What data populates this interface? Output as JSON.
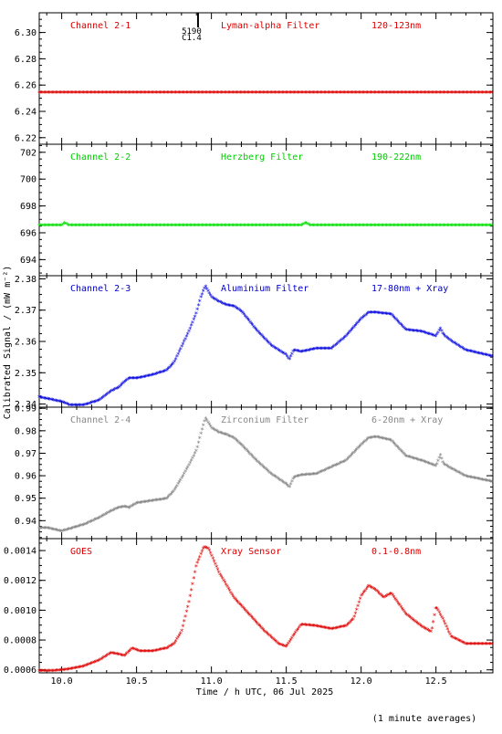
{
  "page": {
    "ylabel": "Calibrated Signal / (mW m⁻²)",
    "xlabel": "Time / h UTC, 06 Jul 2025",
    "footnote": "(1 minute averages)"
  },
  "chart_data": [
    {
      "type": "scatter",
      "channel": "Channel 2-1",
      "filter": "Lyman-alpha Filter",
      "band": "120-123nm",
      "color": "#dd0000",
      "label_color": "#dd0000",
      "marker_label": [
        "5190",
        "C1.4"
      ],
      "marker_x": 10.88,
      "ylim": [
        6.215,
        6.315
      ],
      "yticks": [
        "6.22",
        "6.24",
        "6.26",
        "6.28",
        "6.30"
      ],
      "xlim": [
        9.85,
        12.88
      ],
      "series": [
        {
          "x": [
            9.85,
            12.88
          ],
          "y": [
            6.254,
            6.254
          ]
        }
      ]
    },
    {
      "type": "scatter",
      "channel": "Channel 2-2",
      "filter": "Herzberg Filter",
      "band": "190-222nm",
      "color": "#00dd00",
      "label_color": "#00cc00",
      "ylim": [
        692.8,
        702.6
      ],
      "yticks": [
        "694",
        "696",
        "698",
        "700",
        "702"
      ],
      "xlim": [
        9.85,
        12.88
      ],
      "series": [
        {
          "x": [
            9.85,
            10.0,
            10.02,
            10.05,
            11.6,
            11.63,
            11.66,
            12.88
          ],
          "y": [
            696.5,
            696.5,
            696.7,
            696.5,
            696.5,
            696.7,
            696.5,
            696.5
          ]
        }
      ]
    },
    {
      "type": "scatter",
      "channel": "Channel 2-3",
      "filter": "Aluminium Filter",
      "band": "17-80nm + Xray",
      "color": "#0000dd",
      "label_color": "#0000cc",
      "ylim": [
        2.339,
        2.381
      ],
      "yticks": [
        "2.34",
        "2.35",
        "2.36",
        "2.37",
        "2.38"
      ],
      "xlim": [
        9.85,
        12.88
      ],
      "series": [
        {
          "x": [
            9.85,
            9.9,
            10.0,
            10.05,
            10.15,
            10.25,
            10.33,
            10.38,
            10.42,
            10.45,
            10.5,
            10.6,
            10.7,
            10.75,
            10.8,
            10.85,
            10.9,
            10.93,
            10.96,
            11.0,
            11.05,
            11.1,
            11.15,
            11.2,
            11.3,
            11.4,
            11.5,
            11.52,
            11.55,
            11.6,
            11.7,
            11.8,
            11.9,
            12.0,
            12.05,
            12.1,
            12.2,
            12.3,
            12.4,
            12.5,
            12.53,
            12.55,
            12.6,
            12.7,
            12.88
          ],
          "y": [
            2.342,
            2.3415,
            2.3405,
            2.3395,
            2.3395,
            2.341,
            2.344,
            2.345,
            2.347,
            2.348,
            2.348,
            2.349,
            2.3505,
            2.353,
            2.358,
            2.363,
            2.369,
            2.374,
            2.3775,
            2.374,
            2.3725,
            2.3715,
            2.371,
            2.3695,
            2.3635,
            2.3585,
            2.3555,
            2.354,
            2.357,
            2.3565,
            2.3575,
            2.3575,
            2.3615,
            2.367,
            2.369,
            2.369,
            2.3685,
            2.3635,
            2.363,
            2.3615,
            2.364,
            2.362,
            2.36,
            2.357,
            2.355
          ]
        }
      ]
    },
    {
      "type": "scatter",
      "channel": "Channel 2-4",
      "filter": "Zirconium Filter",
      "band": "6-20nm + Xray",
      "color": "#808080",
      "label_color": "#888888",
      "ylim": [
        0.932,
        0.9905
      ],
      "yticks": [
        "0.94",
        "0.95",
        "0.96",
        "0.97",
        "0.98",
        "0.99"
      ],
      "xlim": [
        9.85,
        12.88
      ],
      "series": [
        {
          "x": [
            9.85,
            9.9,
            10.0,
            10.05,
            10.15,
            10.25,
            10.33,
            10.38,
            10.42,
            10.45,
            10.5,
            10.6,
            10.7,
            10.75,
            10.8,
            10.85,
            10.9,
            10.93,
            10.96,
            11.0,
            11.05,
            11.1,
            11.15,
            11.2,
            11.3,
            11.4,
            11.5,
            11.52,
            11.55,
            11.6,
            11.7,
            11.8,
            11.9,
            12.0,
            12.05,
            12.1,
            12.2,
            12.3,
            12.4,
            12.5,
            12.53,
            12.55,
            12.6,
            12.7,
            12.88
          ],
          "y": [
            0.9365,
            0.9365,
            0.935,
            0.936,
            0.938,
            0.941,
            0.944,
            0.9455,
            0.946,
            0.9455,
            0.9475,
            0.9485,
            0.9495,
            0.953,
            0.9585,
            0.9645,
            0.971,
            0.9785,
            0.9855,
            0.981,
            0.979,
            0.978,
            0.9765,
            0.9735,
            0.9665,
            0.9605,
            0.956,
            0.9545,
            0.959,
            0.96,
            0.9605,
            0.9635,
            0.9665,
            0.9735,
            0.9765,
            0.977,
            0.9755,
            0.9685,
            0.9665,
            0.964,
            0.969,
            0.965,
            0.963,
            0.9595,
            0.957
          ]
        }
      ]
    },
    {
      "type": "scatter",
      "channel": "GOES",
      "filter": "Xray Sensor",
      "band": "0.1-0.8nm",
      "color": "#dd0000",
      "label_color": "#dd0000",
      "ylim": [
        0.00058,
        0.00148
      ],
      "yticks": [
        "0.0006",
        "0.0008",
        "0.0010",
        "0.0012",
        "0.0014"
      ],
      "xlim": [
        9.85,
        12.88
      ],
      "series": [
        {
          "x": [
            9.85,
            9.95,
            10.05,
            10.15,
            10.25,
            10.33,
            10.38,
            10.42,
            10.47,
            10.52,
            10.6,
            10.7,
            10.75,
            10.8,
            10.85,
            10.9,
            10.95,
            10.98,
            11.05,
            11.15,
            11.25,
            11.35,
            11.45,
            11.5,
            11.55,
            11.6,
            11.7,
            11.8,
            11.9,
            11.95,
            12.0,
            12.05,
            12.1,
            12.15,
            12.2,
            12.3,
            12.4,
            12.47,
            12.5,
            12.55,
            12.6,
            12.7,
            12.88
          ],
          "y": [
            0.00059,
            0.00059,
            0.0006,
            0.00062,
            0.00066,
            0.00071,
            0.0007,
            0.00069,
            0.00074,
            0.00072,
            0.00072,
            0.00074,
            0.00077,
            0.00085,
            0.00105,
            0.0013,
            0.00142,
            0.00141,
            0.00125,
            0.00108,
            0.00097,
            0.00086,
            0.00077,
            0.00075,
            0.00083,
            0.0009,
            0.00089,
            0.00087,
            0.00089,
            0.00094,
            0.00109,
            0.00116,
            0.00113,
            0.00108,
            0.00111,
            0.00097,
            0.00089,
            0.00085,
            0.00102,
            0.00093,
            0.00082,
            0.00077,
            0.00077
          ]
        }
      ]
    }
  ]
}
